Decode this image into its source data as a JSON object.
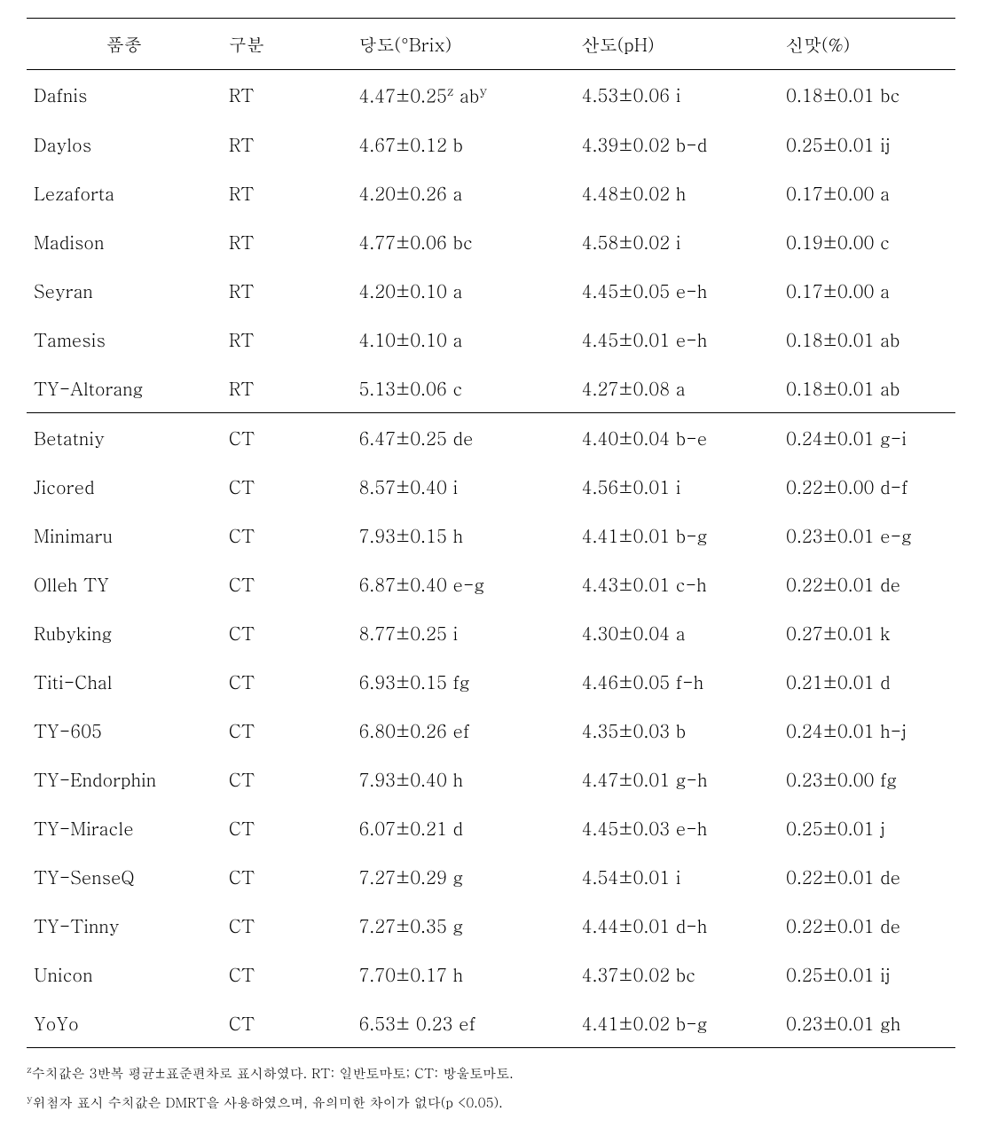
{
  "headers": {
    "col1": "품종",
    "col2": "구분",
    "col3": "당도(°Brix)",
    "col4": "산도(pH)",
    "col5": "신맛(%)"
  },
  "rows": [
    {
      "variety": "Dafnis",
      "cls": "RT",
      "brix_html": "4.47±0.25<span class=\"sup\">z</span> ab<span class=\"sup\">y</span>",
      "ph": "4.53±0.06 i",
      "acid": "0.18±0.01 bc",
      "break": false
    },
    {
      "variety": "Daylos",
      "cls": "RT",
      "brix_html": "4.67±0.12 b",
      "ph": "4.39±0.02 b-d",
      "acid": "0.25±0.01 ij",
      "break": false
    },
    {
      "variety": "Lezaforta",
      "cls": "RT",
      "brix_html": "4.20±0.26 a",
      "ph": "4.48±0.02 h",
      "acid": "0.17±0.00 a",
      "break": false
    },
    {
      "variety": "Madison",
      "cls": "RT",
      "brix_html": "4.77±0.06 bc",
      "ph": "4.58±0.02 i",
      "acid": "0.19±0.00 c",
      "break": false
    },
    {
      "variety": "Seyran",
      "cls": "RT",
      "brix_html": "4.20±0.10 a",
      "ph": "4.45±0.05 e-h",
      "acid": "0.17±0.00 a",
      "break": false
    },
    {
      "variety": "Tamesis",
      "cls": "RT",
      "brix_html": "4.10±0.10 a",
      "ph": "4.45±0.01 e-h",
      "acid": "0.18±0.01 ab",
      "break": false
    },
    {
      "variety": "TY-Altorang",
      "cls": "RT",
      "brix_html": "5.13±0.06 c",
      "ph": "4.27±0.08 a",
      "acid": "0.18±0.01 ab",
      "break": false
    },
    {
      "variety": "Betatniy",
      "cls": "CT",
      "brix_html": "6.47±0.25 de",
      "ph": "4.40±0.04 b-e",
      "acid": "0.24±0.01 g-i",
      "break": true
    },
    {
      "variety": "Jicored",
      "cls": "CT",
      "brix_html": "8.57±0.40 i",
      "ph": "4.56±0.01 i",
      "acid": "0.22±0.00 d-f",
      "break": false
    },
    {
      "variety": "Minimaru",
      "cls": "CT",
      "brix_html": "7.93±0.15 h",
      "ph": "4.41±0.01 b-g",
      "acid": "0.23±0.01 e-g",
      "break": false
    },
    {
      "variety": "Olleh TY",
      "cls": "CT",
      "brix_html": "6.87±0.40 e-g",
      "ph": "4.43±0.01 c-h",
      "acid": "0.22±0.01 de",
      "break": false
    },
    {
      "variety": "Rubyking",
      "cls": "CT",
      "brix_html": "8.77±0.25 i",
      "ph": "4.30±0.04 a",
      "acid": "0.27±0.01 k",
      "break": false
    },
    {
      "variety": "Titi-Chal",
      "cls": "CT",
      "brix_html": "6.93±0.15 fg",
      "ph": "4.46±0.05 f-h",
      "acid": "0.21±0.01 d",
      "break": false
    },
    {
      "variety": "TY-605",
      "cls": "CT",
      "brix_html": "6.80±0.26 ef",
      "ph": "4.35±0.03 b",
      "acid": "0.24±0.01 h-j",
      "break": false
    },
    {
      "variety": "TY-Endorphin",
      "cls": "CT",
      "brix_html": "7.93±0.40 h",
      "ph": "4.47±0.01 g-h",
      "acid": "0.23±0.00 fg",
      "break": false
    },
    {
      "variety": "TY-Miracle",
      "cls": "CT",
      "brix_html": "6.07±0.21 d",
      "ph": "4.45±0.03 e-h",
      "acid": "0.25±0.01 j",
      "break": false
    },
    {
      "variety": "TY-SenseQ",
      "cls": "CT",
      "brix_html": "7.27±0.29 g",
      "ph": "4.54±0.01 i",
      "acid": "0.22±0.01 de",
      "break": false
    },
    {
      "variety": "TY-Tinny",
      "cls": "CT",
      "brix_html": "7.27±0.35 g",
      "ph": "4.44±0.01 d-h",
      "acid": "0.22±0.01 de",
      "break": false
    },
    {
      "variety": "Unicon",
      "cls": "CT",
      "brix_html": "7.70±0.17 h",
      "ph": "4.37±0.02 bc",
      "acid": "0.25±0.01 ij",
      "break": false
    },
    {
      "variety": "YoYo",
      "cls": "CT",
      "brix_html": "6.53± 0.23 ef",
      "ph": "4.41±0.02 b-g",
      "acid": "0.23±0.01 gh",
      "break": false
    }
  ],
  "footnotes": {
    "z_html": "<span class=\"sup\">z</span>수치값은 3반복 평균±표준편차로 표시하였다. RT: 일반토마토; CT: 방울토마토.",
    "y_html": "<span class=\"sup\">y</span>위첨자 표시 수치값은 DMRT을 사용하였으며, 유의미한 차이가 없다(p <0.05)."
  },
  "style": {
    "border_color": "#000000",
    "background_color": "#ffffff",
    "body_fontsize": 20,
    "footnote_fontsize": 15
  }
}
